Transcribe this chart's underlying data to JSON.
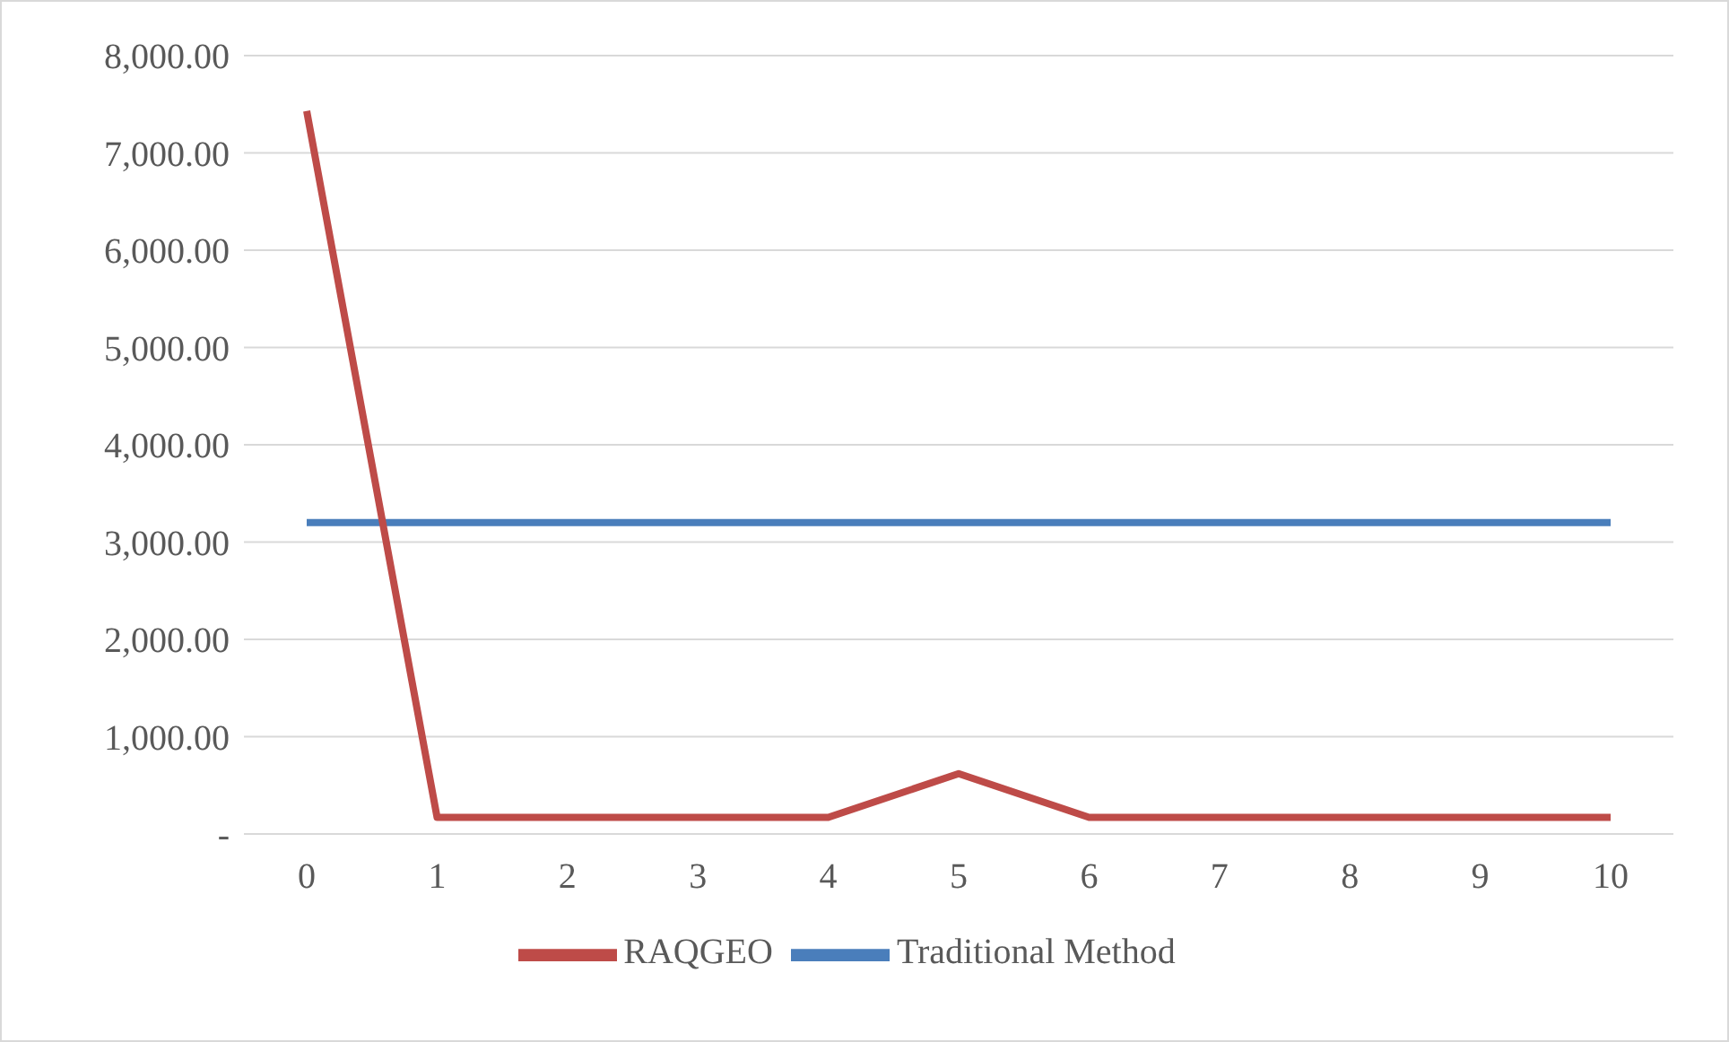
{
  "chart_data": {
    "type": "line",
    "categories": [
      "0",
      "1",
      "2",
      "3",
      "4",
      "5",
      "6",
      "7",
      "8",
      "9",
      "10"
    ],
    "series": [
      {
        "name": "Traditional Method",
        "color": "#4a7ebb",
        "values": [
          3200,
          3200,
          3200,
          3200,
          3200,
          3200,
          3200,
          3200,
          3200,
          3200,
          3200
        ]
      },
      {
        "name": "RAQGEO",
        "color": "#be4b48",
        "values": [
          7430,
          170,
          170,
          170,
          170,
          620,
          170,
          170,
          170,
          170,
          170
        ]
      }
    ],
    "ylim": [
      0,
      8000
    ],
    "yticks": [
      {
        "value": 0,
        "label": "-"
      },
      {
        "value": 1000,
        "label": "1,000.00"
      },
      {
        "value": 2000,
        "label": "2,000.00"
      },
      {
        "value": 3000,
        "label": "3,000.00"
      },
      {
        "value": 4000,
        "label": "4,000.00"
      },
      {
        "value": 5000,
        "label": "5,000.00"
      },
      {
        "value": 6000,
        "label": "6,000.00"
      },
      {
        "value": 7000,
        "label": "7,000.00"
      },
      {
        "value": 8000,
        "label": "8,000.00"
      }
    ],
    "grid": "y",
    "legend": "bottom",
    "marker": "none",
    "line_style": "solid"
  }
}
